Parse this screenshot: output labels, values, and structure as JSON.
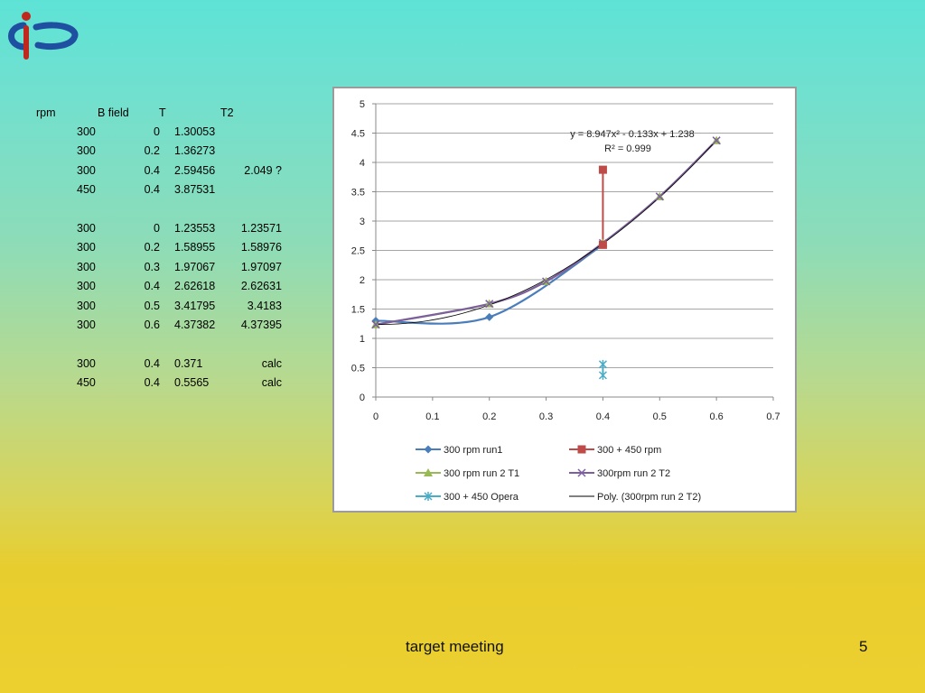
{
  "table": {
    "header": [
      "rpm",
      "B field",
      "T",
      "T2"
    ],
    "rows": [
      {
        "rpm": "300",
        "b": "0",
        "t": "1.30053",
        "t2": ""
      },
      {
        "rpm": "300",
        "b": "0.2",
        "t": "1.36273",
        "t2": ""
      },
      {
        "rpm": "300",
        "b": "0.4",
        "t": "2.59456",
        "t2": "2.049 ?"
      },
      {
        "rpm": "450",
        "b": "0.4",
        "t": "3.87531",
        "t2": ""
      },
      {
        "rpm": "",
        "b": "",
        "t": "",
        "t2": ""
      },
      {
        "rpm": "300",
        "b": "0",
        "t": "1.23553",
        "t2": "1.23571"
      },
      {
        "rpm": "300",
        "b": "0.2",
        "t": "1.58955",
        "t2": "1.58976"
      },
      {
        "rpm": "300",
        "b": "0.3",
        "t": "1.97067",
        "t2": "1.97097"
      },
      {
        "rpm": "300",
        "b": "0.4",
        "t": "2.62618",
        "t2": "2.62631"
      },
      {
        "rpm": "300",
        "b": "0.5",
        "t": "3.41795",
        "t2": "3.4183"
      },
      {
        "rpm": "300",
        "b": "0.6",
        "t": "4.37382",
        "t2": "4.37395"
      },
      {
        "rpm": "",
        "b": "",
        "t": "",
        "t2": ""
      },
      {
        "rpm": "300",
        "b": "0.4",
        "t": "0.371",
        "t2": "calc"
      },
      {
        "rpm": "450",
        "b": "0.4",
        "t": "0.5565",
        "t2": "calc"
      }
    ]
  },
  "chart_data": {
    "type": "scatter",
    "xlim": [
      0,
      0.7
    ],
    "ylim": [
      0,
      5
    ],
    "x_ticks": [
      "0",
      "0.1",
      "0.2",
      "0.3",
      "0.4",
      "0.5",
      "0.6",
      "0.7"
    ],
    "y_ticks": [
      "0",
      "0.5",
      "1",
      "1.5",
      "2",
      "2.5",
      "3",
      "3.5",
      "4",
      "4.5",
      "5"
    ],
    "grid": true,
    "legend_position": "bottom",
    "trendline_equation": "y = 8.947x² - 0.133x + 1.238",
    "trendline_r2": "R² = 0.999",
    "series": [
      {
        "name": "300 rpm run1",
        "color": "#4a7ebb",
        "marker": "diamond",
        "smooth": true,
        "points": [
          [
            0,
            1.30053
          ],
          [
            0.2,
            1.36273
          ],
          [
            0.4,
            2.59456
          ]
        ]
      },
      {
        "name": "300 + 450 rpm",
        "color": "#be4b48",
        "marker": "square",
        "smooth": false,
        "points": [
          [
            0.4,
            2.59456
          ],
          [
            0.4,
            3.87531
          ]
        ]
      },
      {
        "name": "300 rpm run 2 T1",
        "color": "#98b954",
        "marker": "triangle",
        "smooth": true,
        "points": [
          [
            0,
            1.23553
          ],
          [
            0.2,
            1.58955
          ],
          [
            0.3,
            1.97067
          ],
          [
            0.4,
            2.62618
          ],
          [
            0.5,
            3.41795
          ],
          [
            0.6,
            4.37382
          ]
        ]
      },
      {
        "name": "300rpm run 2 T2",
        "color": "#7d5fa0",
        "marker": "x",
        "smooth": true,
        "points": [
          [
            0,
            1.23571
          ],
          [
            0.2,
            1.58976
          ],
          [
            0.3,
            1.97097
          ],
          [
            0.4,
            2.62631
          ],
          [
            0.5,
            3.4183
          ],
          [
            0.6,
            4.37395
          ]
        ]
      },
      {
        "name": "300 + 450 Opera",
        "color": "#4bacc6",
        "marker": "star",
        "smooth": false,
        "points": [
          [
            0.4,
            0.371
          ],
          [
            0.4,
            0.5565
          ]
        ]
      },
      {
        "name": "Poly. (300rpm run 2 T2)",
        "color": "#000000",
        "marker": "none",
        "smooth": false,
        "poly": [
          1.238,
          -0.133,
          8.947
        ]
      }
    ]
  },
  "footer": {
    "text": "target meeting",
    "page_number": "5"
  },
  "colors": {
    "logo_red": "#c0281e",
    "logo_blue": "#1f4fa0"
  }
}
